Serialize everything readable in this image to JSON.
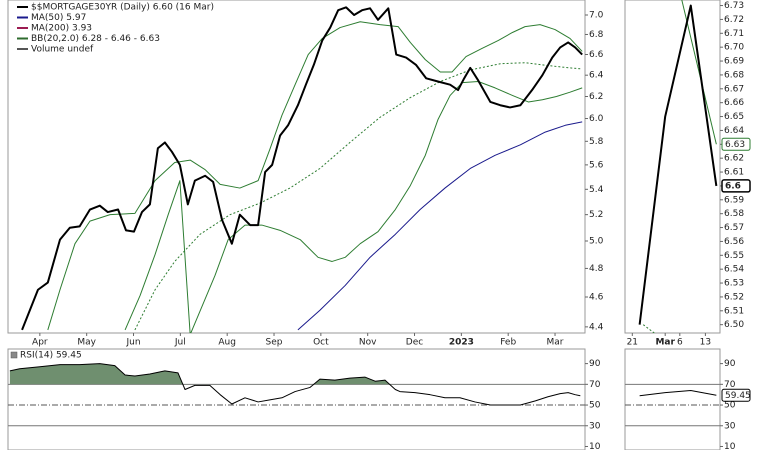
{
  "chart_data": [
    {
      "type": "line",
      "log": true,
      "xlim": [
        2.32,
        14.64
      ],
      "ylim": [
        4.36,
        7.158
      ],
      "xticks": [
        {
          "value": 3,
          "label": "Apr"
        },
        {
          "value": 4,
          "label": "May"
        },
        {
          "value": 5,
          "label": "Jun"
        },
        {
          "value": 6,
          "label": "Jul"
        },
        {
          "value": 7,
          "label": "Aug"
        },
        {
          "value": 8,
          "label": "Sep"
        },
        {
          "value": 9,
          "label": "Oct"
        },
        {
          "value": 10,
          "label": "Nov"
        },
        {
          "value": 11,
          "label": "Dec"
        },
        {
          "value": 12,
          "label": "2023",
          "bold": true
        },
        {
          "value": 13,
          "label": "Feb"
        },
        {
          "value": 14,
          "label": "Mar"
        }
      ],
      "yticks": [
        4.4,
        4.6,
        4.8,
        {
          "value": 5,
          "label": "5.0"
        },
        5.2,
        5.4,
        5.6,
        5.8,
        {
          "value": 6,
          "label": "6.0"
        },
        6.2,
        6.4,
        6.6,
        6.8,
        {
          "value": 7,
          "label": "7.0"
        }
      ],
      "legend": [
        {
          "label": "$$MORTGAGE30YR (Daily) 6.60 (16 Mar)",
          "color": "#000000"
        },
        {
          "label": "MA(50) 5.97",
          "color": "#1a1a8c"
        },
        {
          "label": "MA(200) 3.93",
          "color": "#9c1c52"
        },
        {
          "label": "BB(20,2.0) 6.28 - 6.46 - 6.63",
          "color": "#2e6b2e"
        },
        {
          "label": "Volume undef",
          "color": "#555555"
        }
      ],
      "series": [
        {
          "color": "#2e7d32",
          "width": 1,
          "x": [
            3.17,
            3.43,
            3.75,
            4.07,
            4.5,
            5.03,
            5.46,
            5.88,
            6.21,
            6.53,
            6.85,
            7.27,
            7.66,
            7.91,
            8.17,
            8.45,
            8.73,
            9.03,
            9.41,
            9.84,
            10.26,
            10.65,
            10.91,
            11.23,
            11.55,
            11.8,
            12.1,
            12.44,
            12.79,
            13.09,
            13.36,
            13.68,
            14.0,
            14.32,
            14.58
          ],
          "values": [
            4.38,
            4.65,
            4.98,
            5.15,
            5.2,
            5.21,
            5.47,
            5.62,
            5.64,
            5.56,
            5.44,
            5.41,
            5.47,
            5.73,
            6.03,
            6.31,
            6.6,
            6.76,
            6.87,
            6.93,
            6.9,
            6.88,
            6.72,
            6.55,
            6.43,
            6.43,
            6.58,
            6.66,
            6.74,
            6.82,
            6.88,
            6.9,
            6.85,
            6.76,
            6.63
          ]
        },
        {
          "color": "#2e7d32",
          "width": 1,
          "x": [
            4.82,
            5.14,
            5.46,
            5.74,
            5.99,
            6.21,
            6.74,
            7.02,
            7.38,
            7.74,
            8.13,
            8.56,
            8.94,
            9.24,
            9.52,
            9.84,
            10.22,
            10.59,
            10.91,
            11.23,
            11.5,
            11.76,
            12.02,
            12.36,
            12.72,
            13.09,
            13.43,
            13.73,
            14.03,
            14.32,
            14.58
          ],
          "values": [
            4.38,
            4.61,
            4.9,
            5.2,
            5.47,
            4.35,
            4.75,
            5.01,
            5.12,
            5.12,
            5.08,
            5.01,
            4.88,
            4.85,
            4.88,
            4.98,
            5.07,
            5.24,
            5.43,
            5.68,
            5.99,
            6.21,
            6.33,
            6.34,
            6.28,
            6.21,
            6.15,
            6.17,
            6.2,
            6.24,
            6.28
          ]
        },
        {
          "color": "#2e7d32",
          "width": 1,
          "dash": "2,2",
          "x": [
            5.03,
            5.46,
            5.88,
            6.42,
            7.06,
            7.7,
            8.34,
            8.98,
            9.62,
            10.26,
            10.91,
            11.55,
            12.19,
            12.83,
            13.36,
            13.9,
            14.32,
            14.58
          ],
          "values": [
            4.38,
            4.65,
            4.85,
            5.05,
            5.2,
            5.29,
            5.41,
            5.57,
            5.79,
            6.01,
            6.19,
            6.34,
            6.45,
            6.51,
            6.52,
            6.49,
            6.47,
            6.46
          ]
        },
        {
          "color": "#1a1a8c",
          "width": 1,
          "x": [
            8.51,
            8.98,
            9.52,
            10.05,
            10.59,
            11.12,
            11.65,
            12.19,
            12.72,
            13.26,
            13.79,
            14.22,
            14.58
          ],
          "values": [
            4.38,
            4.51,
            4.68,
            4.88,
            5.05,
            5.24,
            5.41,
            5.57,
            5.68,
            5.77,
            5.88,
            5.94,
            5.97
          ]
        },
        {
          "color": "#000000",
          "width": 2,
          "x": [
            2.62,
            2.96,
            3.17,
            3.43,
            3.64,
            3.85,
            4.07,
            4.28,
            4.45,
            4.67,
            4.84,
            5.01,
            5.18,
            5.35,
            5.52,
            5.67,
            5.82,
            5.99,
            6.16,
            6.31,
            6.53,
            6.7,
            6.89,
            7.1,
            7.27,
            7.49,
            7.66,
            7.81,
            7.96,
            8.13,
            8.3,
            8.51,
            8.68,
            8.85,
            9.03,
            9.2,
            9.37,
            9.54,
            9.71,
            9.88,
            10.05,
            10.22,
            10.44,
            10.61,
            10.82,
            11.03,
            11.25,
            11.5,
            11.76,
            11.93,
            12.06,
            12.19,
            12.36,
            12.62,
            12.83,
            13.04,
            13.26,
            13.51,
            13.73,
            13.94,
            14.11,
            14.28,
            14.43,
            14.58
          ],
          "values": [
            4.38,
            4.65,
            4.7,
            5.01,
            5.1,
            5.11,
            5.24,
            5.27,
            5.22,
            5.24,
            5.08,
            5.07,
            5.22,
            5.28,
            5.74,
            5.79,
            5.71,
            5.6,
            5.28,
            5.47,
            5.51,
            5.46,
            5.16,
            4.98,
            5.2,
            5.12,
            5.12,
            5.54,
            5.6,
            5.85,
            5.94,
            6.12,
            6.31,
            6.5,
            6.74,
            6.87,
            7.05,
            7.08,
            7.0,
            7.05,
            7.07,
            6.95,
            7.07,
            6.6,
            6.57,
            6.5,
            6.37,
            6.34,
            6.31,
            6.26,
            6.37,
            6.47,
            6.35,
            6.15,
            6.12,
            6.1,
            6.12,
            6.26,
            6.4,
            6.57,
            6.67,
            6.72,
            6.67,
            6.6
          ]
        }
      ]
    },
    {
      "type": "line",
      "xlim": [
        19,
        45
      ],
      "ylim": [
        6.494,
        6.734
      ],
      "xticks": [
        {
          "value": 21,
          "label": "21"
        },
        {
          "value": 30,
          "label": "Mar",
          "bold": true
        },
        {
          "value": 34,
          "label": "6"
        },
        {
          "value": 41,
          "label": "13"
        }
      ],
      "yticks": [
        {
          "value": 6.5,
          "label": "6.50"
        },
        6.51,
        6.52,
        6.53,
        6.54,
        6.55,
        6.56,
        6.57,
        6.58,
        6.59,
        {
          "value": 6.6,
          "label": "6.60"
        },
        6.61,
        6.62,
        6.63,
        6.64,
        6.65,
        6.66,
        6.67,
        6.68,
        6.69,
        {
          "value": 6.7,
          "label": "6.70"
        },
        6.71,
        6.72,
        6.73
      ],
      "series": [
        {
          "color": "#2e7d32",
          "width": 1,
          "dash": "2,2",
          "x": [
            24,
            29
          ],
          "values": [
            6.5,
            6.49
          ]
        },
        {
          "color": "#2e7d32",
          "width": 1,
          "x": [
            34,
            44
          ],
          "values": [
            6.74,
            6.63
          ],
          "end_label": true
        },
        {
          "color": "#000000",
          "width": 2,
          "x": [
            23,
            30,
            37,
            44
          ],
          "values": [
            6.5,
            6.65,
            6.73,
            6.6
          ],
          "end_label": true
        }
      ]
    },
    {
      "type": "line",
      "title": "RSI(14) 59.45",
      "xlim": [
        2.32,
        14.64
      ],
      "ylim": [
        6.6,
        104.1
      ],
      "yticks": [
        10,
        30,
        50,
        70,
        90
      ],
      "reference_lines": [
        {
          "value": 70,
          "style": "solid"
        },
        {
          "value": 50,
          "style": "dashdot"
        },
        {
          "value": 30,
          "style": "solid"
        }
      ],
      "fill_above": 70,
      "fill_color": "#6f8f6f",
      "series": [
        {
          "color": "#000000",
          "width": 1,
          "x": [
            2.36,
            2.57,
            3,
            3.43,
            3.85,
            4.28,
            4.6,
            4.82,
            5.03,
            5.35,
            5.67,
            5.95,
            6.1,
            6.31,
            6.63,
            6.85,
            7.1,
            7.38,
            7.66,
            7.91,
            8.17,
            8.45,
            8.77,
            8.98,
            9.3,
            9.62,
            9.94,
            10.16,
            10.37,
            10.59,
            10.69,
            11.01,
            11.33,
            11.65,
            11.97,
            12.29,
            12.62,
            12.94,
            13.26,
            13.58,
            13.85,
            14.11,
            14.28,
            14.43,
            14.54
          ],
          "values": [
            83,
            85,
            87,
            89,
            89,
            90,
            88,
            79,
            78,
            80,
            83,
            81,
            65,
            69,
            69,
            60,
            51,
            57,
            53,
            55,
            57,
            63,
            67,
            75,
            74,
            76,
            77,
            73,
            74,
            65,
            63,
            62,
            60,
            57,
            57,
            53,
            50,
            50,
            50,
            54,
            58,
            61,
            62,
            60,
            59
          ]
        }
      ]
    },
    {
      "type": "line",
      "xlim": [
        19,
        45
      ],
      "ylim": [
        6.6,
        104.1
      ],
      "yticks": [
        10,
        30,
        50,
        70,
        90
      ],
      "reference_lines": [
        {
          "value": 70,
          "style": "solid"
        },
        {
          "value": 50,
          "style": "dashdot"
        },
        {
          "value": 30,
          "style": "solid"
        }
      ],
      "series": [
        {
          "color": "#000000",
          "width": 1,
          "x": [
            23,
            30,
            37,
            44
          ],
          "values": [
            59,
            62,
            64,
            59.45
          ],
          "end_label": true
        }
      ]
    }
  ]
}
